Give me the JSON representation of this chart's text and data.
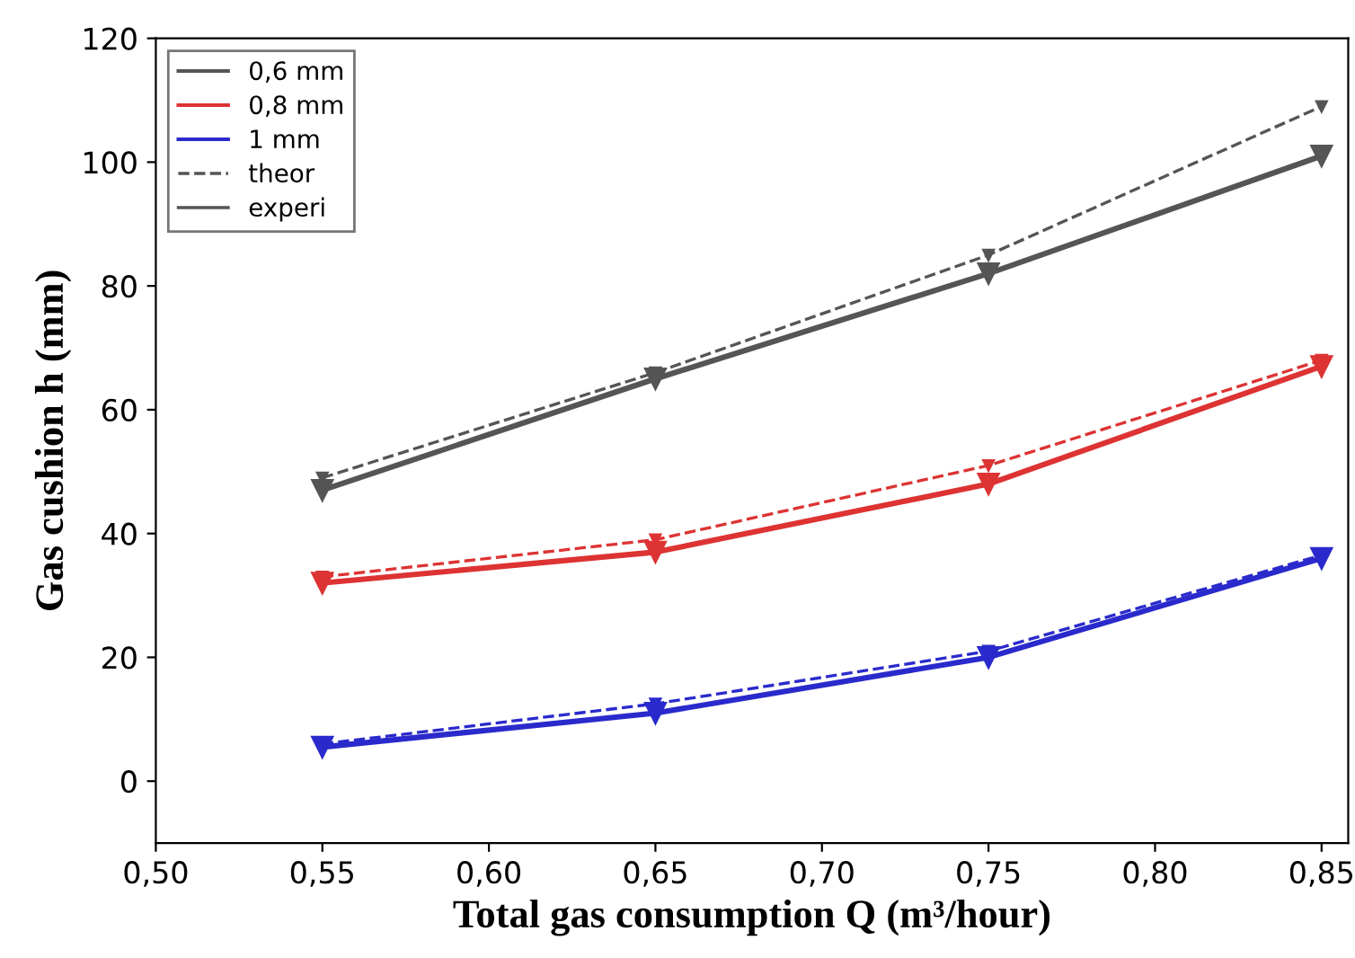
{
  "chart_data": {
    "type": "line",
    "xlabel": "Total gas consumption Q (m³/hour)",
    "ylabel": "Gas cushion h (mm)",
    "x": [
      0.55,
      0.65,
      0.75,
      0.85
    ],
    "series": [
      {
        "name": "0,6 mm",
        "color": "#555555",
        "line_style": "solid",
        "values": [
          47,
          65,
          82,
          101
        ]
      },
      {
        "name": "0,8 mm",
        "color": "#dd3333",
        "line_style": "solid",
        "values": [
          32,
          37,
          48,
          67
        ]
      },
      {
        "name": "1 mm",
        "color": "#2a2acc",
        "line_style": "solid",
        "values": [
          5.5,
          11,
          20,
          36
        ]
      },
      {
        "color": "#555555",
        "line_style": "dashed",
        "values": [
          49,
          66,
          85,
          109
        ]
      },
      {
        "color": "#dd3333",
        "line_style": "dashed",
        "values": [
          33,
          39,
          51,
          68
        ]
      },
      {
        "color": "#2a2acc",
        "line_style": "dashed",
        "values": [
          6,
          12.5,
          21,
          36.5
        ]
      }
    ],
    "annotations": [
      "theor",
      "experi"
    ],
    "marker": "triangle",
    "xlim": [
      0.5,
      0.858
    ],
    "xticks": [
      {
        "value": 0.5,
        "label": "0,50"
      },
      {
        "value": 0.55,
        "label": "0,55"
      },
      {
        "value": 0.6,
        "label": "0,60"
      },
      {
        "value": 0.65,
        "label": "0,65"
      },
      {
        "value": 0.7,
        "label": "0,70"
      },
      {
        "value": 0.75,
        "label": "0,75"
      },
      {
        "value": 0.8,
        "label": "0,80"
      },
      {
        "value": 0.85,
        "label": "0,85"
      }
    ],
    "ylim": [
      -10,
      120
    ],
    "yticks": [
      0,
      20,
      40,
      60,
      80,
      100,
      120
    ],
    "grid": false,
    "legend": "top left"
  }
}
